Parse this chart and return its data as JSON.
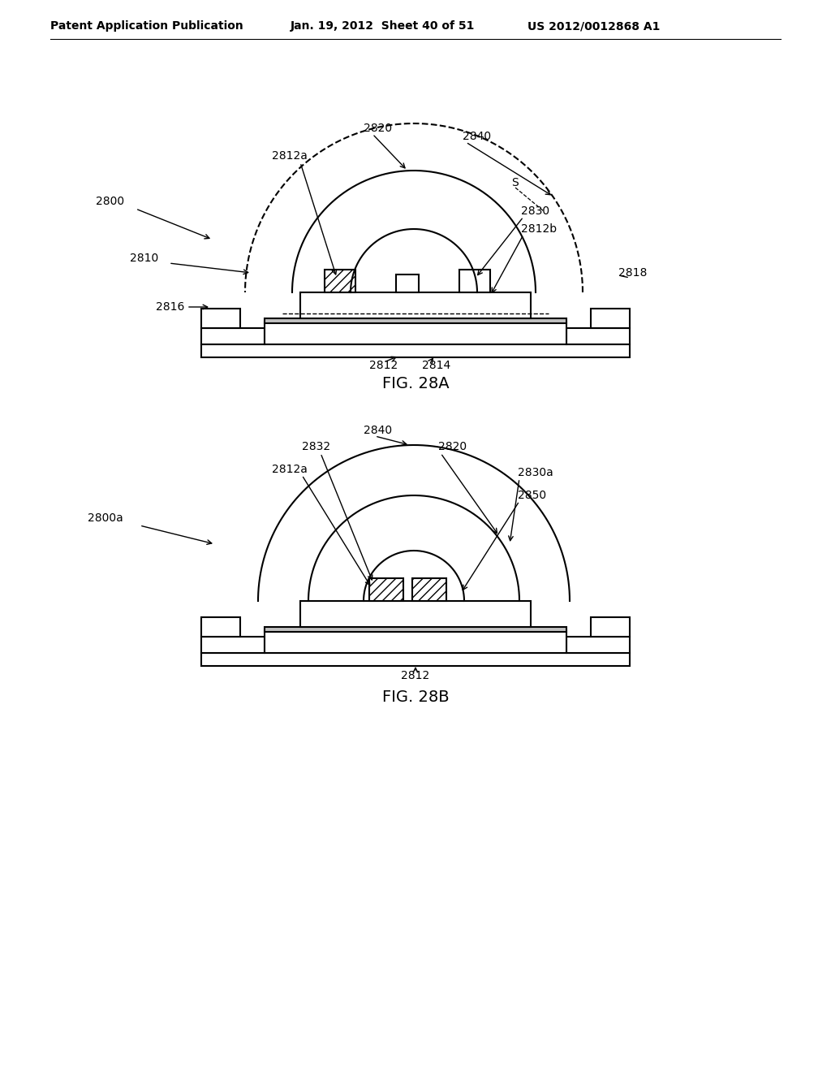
{
  "bg_color": "#ffffff",
  "header_left": "Patent Application Publication",
  "header_mid": "Jan. 19, 2012  Sheet 40 of 51",
  "header_right": "US 2012/0012868 A1",
  "fig_label_A": "FIG. 28A",
  "fig_label_B": "FIG. 28B",
  "line_color": "#000000",
  "lw": 1.5
}
